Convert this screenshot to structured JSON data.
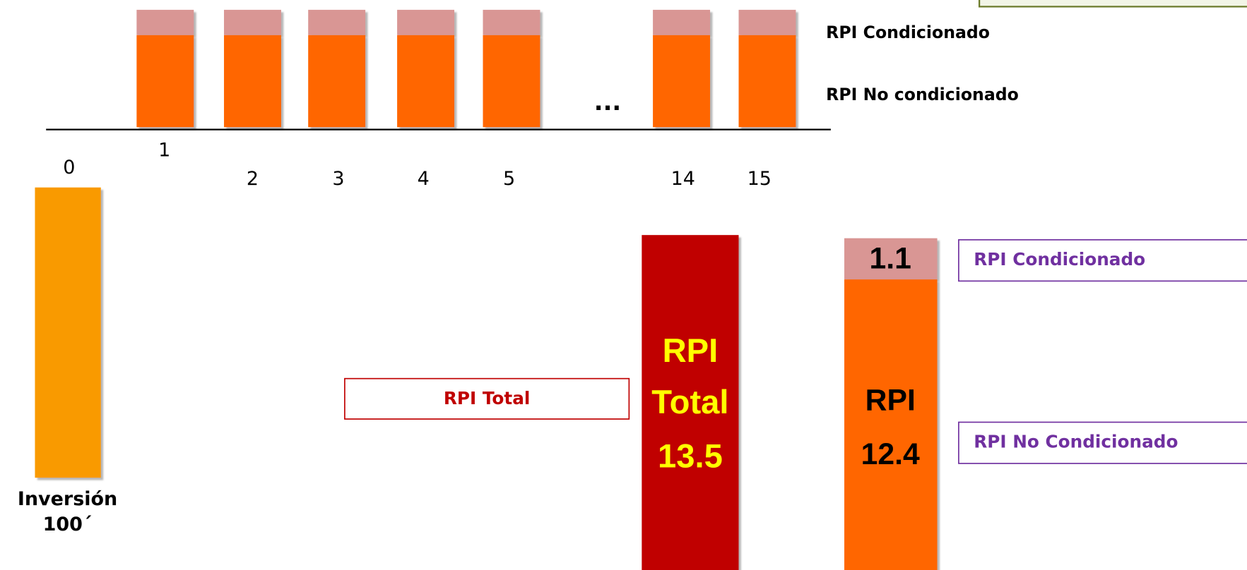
{
  "top_chart": {
    "periods": [
      "0",
      "1",
      "2",
      "3",
      "4",
      "5",
      "14",
      "15"
    ],
    "ellipsis": "...",
    "legend": [
      "RPI Condicionado",
      "RPI No condicionado"
    ]
  },
  "investment": {
    "label": "Inversión",
    "value": "100´"
  },
  "total_box": "RPI Total",
  "total_bar": {
    "lines": [
      "RPI",
      "Total",
      "13.5"
    ]
  },
  "split_bar": {
    "top": "1.1",
    "bottom_lines": [
      "RPI",
      "12.4"
    ]
  },
  "split_boxes": [
    "RPI Condicionado",
    "RPI No Condicionado"
  ]
}
